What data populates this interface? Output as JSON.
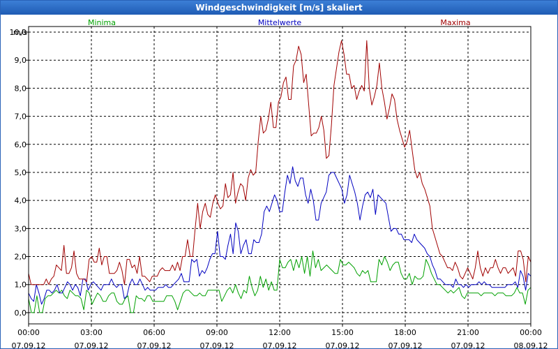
{
  "window": {
    "title": "Windgeschwindigkeit [m/s] skaliert"
  },
  "colors": {
    "min": "#00a000",
    "mean": "#0000c0",
    "max": "#a00000",
    "grid": "#000000"
  },
  "chart_data": {
    "type": "line",
    "ylabel": "m/s",
    "ylim": [
      -0.4,
      10.2
    ],
    "xlim": [
      0,
      24
    ],
    "legend_placement": "top",
    "grid": true,
    "yticks": [
      0,
      1,
      2,
      3,
      4,
      5,
      6,
      7,
      8,
      9,
      10
    ],
    "ytick_labels": [
      "0,0",
      "1,0",
      "2,0",
      "3,0",
      "4,0",
      "5,0",
      "6,0",
      "7,0",
      "8,0",
      "9,0",
      "10,0"
    ],
    "xticks": [
      {
        "time": "00:00",
        "date": "07.09.12"
      },
      {
        "time": "03:00",
        "date": "07.09.12"
      },
      {
        "time": "06:00",
        "date": "07.09.12"
      },
      {
        "time": "09:00",
        "date": "07.09.12"
      },
      {
        "time": "12:00",
        "date": "07.09.12"
      },
      {
        "time": "15:00",
        "date": "07.09.12"
      },
      {
        "time": "18:00",
        "date": "07.09.12"
      },
      {
        "time": "21:00",
        "date": "07.09.12"
      },
      {
        "time": "00:00",
        "date": "08.09.12"
      }
    ],
    "x_hours_step": 0.1667,
    "series": [
      {
        "name": "Minima",
        "values": [
          0.5,
          0.0,
          0.0,
          0.6,
          0.0,
          0.0,
          0.5,
          0.6,
          0.6,
          0.7,
          0.8,
          0.7,
          0.8,
          0.6,
          0.5,
          0.8,
          0.7,
          0.6,
          0.6,
          0.5,
          0.1,
          0.8,
          0.7,
          0.3,
          0.5,
          0.7,
          0.6,
          0.4,
          0.4,
          0.6,
          0.7,
          0.7,
          0.4,
          0.3,
          0.3,
          0.5,
          0.6,
          0.0,
          0.0,
          0.6,
          0.5,
          0.5,
          0.4,
          0.6,
          0.6,
          0.4,
          0.4,
          0.4,
          0.4,
          0.4,
          0.6,
          0.6,
          0.6,
          0.4,
          0.1,
          0.4,
          0.7,
          0.8,
          0.8,
          0.7,
          0.6,
          0.6,
          0.7,
          0.6,
          0.6,
          0.8,
          0.8,
          0.8,
          0.8,
          0.8,
          0.4,
          0.6,
          0.8,
          0.9,
          0.7,
          1.0,
          0.7,
          0.5,
          0.8,
          0.7,
          1.3,
          0.9,
          0.6,
          0.8,
          1.3,
          0.9,
          1.2,
          0.8,
          1.1,
          0.8,
          0.8,
          1.9,
          1.6,
          1.6,
          1.8,
          1.9,
          1.5,
          1.9,
          1.6,
          2.0,
          1.4,
          2.0,
          1.3,
          2.2,
          1.6,
          1.9,
          1.5,
          1.6,
          1.7,
          1.6,
          1.5,
          1.4,
          1.4,
          1.9,
          1.7,
          1.7,
          1.8,
          1.7,
          1.6,
          1.4,
          1.3,
          1.5,
          1.4,
          1.5,
          1.1,
          1.1,
          1.1,
          1.9,
          1.7,
          2.0,
          1.8,
          1.5,
          1.7,
          1.8,
          1.8,
          1.4,
          1.2,
          1.2,
          1.4,
          1.0,
          1.3,
          1.2,
          1.2,
          1.3,
          1.9,
          1.7,
          1.4,
          1.2,
          1.0,
          1.0,
          0.9,
          0.8,
          0.7,
          0.8,
          0.7,
          0.8,
          0.9,
          0.6,
          0.5,
          0.7,
          0.7,
          0.7,
          0.7,
          0.7,
          0.6,
          0.7,
          0.7,
          0.7,
          0.7,
          0.6,
          0.7,
          0.7,
          0.7,
          0.6,
          0.6,
          0.6,
          0.7,
          0.9,
          0.7,
          0.7,
          0.3,
          0.8,
          0.9
        ]
      },
      {
        "name": "Mittelwerte",
        "values": [
          0.7,
          0.5,
          0.4,
          1.0,
          0.7,
          0.3,
          0.5,
          0.8,
          0.8,
          0.7,
          0.8,
          1.0,
          0.7,
          0.7,
          0.9,
          1.1,
          1.0,
          0.8,
          1.0,
          0.9,
          0.6,
          1.2,
          1.2,
          0.8,
          1.0,
          1.1,
          1.0,
          0.9,
          0.8,
          1.0,
          1.0,
          1.0,
          1.2,
          1.0,
          0.9,
          1.0,
          1.0,
          0.5,
          0.6,
          1.0,
          1.2,
          1.0,
          1.0,
          1.2,
          1.0,
          0.8,
          0.9,
          0.8,
          0.8,
          0.8,
          0.9,
          0.9,
          0.9,
          1.0,
          0.9,
          0.9,
          1.0,
          1.1,
          1.2,
          1.4,
          1.1,
          1.1,
          1.1,
          1.9,
          1.8,
          1.9,
          1.3,
          1.5,
          1.4,
          1.6,
          1.9,
          2.1,
          2.1,
          2.9,
          2.0,
          2.0,
          1.9,
          2.4,
          2.8,
          2.1,
          3.2,
          2.9,
          2.1,
          2.4,
          2.6,
          2.1,
          2.1,
          2.6,
          2.5,
          2.5,
          2.8,
          3.6,
          3.8,
          3.6,
          3.9,
          4.2,
          4.0,
          3.6,
          3.6,
          4.3,
          4.9,
          4.6,
          5.2,
          4.7,
          4.5,
          4.8,
          4.8,
          4.2,
          3.9,
          4.4,
          4.0,
          3.3,
          3.3,
          3.9,
          4.1,
          4.3,
          4.9,
          5.0,
          5.0,
          4.8,
          4.6,
          4.4,
          3.9,
          4.2,
          4.9,
          4.6,
          4.3,
          3.9,
          3.3,
          3.8,
          4.2,
          4.3,
          4.1,
          4.4,
          3.5,
          4.2,
          4.1,
          4.0,
          3.9,
          3.4,
          2.9,
          3.0,
          3.0,
          2.8,
          2.8,
          2.6,
          2.6,
          2.6,
          2.5,
          2.8,
          2.6,
          2.5,
          2.4,
          2.3,
          2.1,
          2.0,
          1.7,
          1.5,
          1.2,
          1.2,
          1.1,
          1.0,
          1.0,
          1.0,
          0.9,
          1.2,
          1.0,
          1.0,
          0.9,
          1.0,
          0.9,
          1.0,
          1.0,
          1.0,
          1.1,
          1.0,
          1.1,
          1.0,
          1.0,
          0.9,
          0.9,
          0.9,
          0.9,
          0.9,
          0.9,
          1.0,
          1.0,
          1.0,
          1.1,
          0.9,
          1.5,
          1.3,
          0.8,
          1.4,
          1.3
        ]
      },
      {
        "name": "Maxima",
        "values": [
          1.4,
          1.0,
          1.0,
          1.0,
          1.0,
          1.0,
          1.0,
          1.2,
          1.0,
          1.2,
          1.3,
          1.7,
          1.6,
          1.5,
          2.4,
          1.4,
          1.4,
          1.6,
          2.2,
          1.4,
          1.2,
          1.2,
          1.2,
          1.1,
          1.9,
          2.0,
          1.8,
          1.8,
          2.3,
          1.7,
          2.0,
          2.0,
          1.4,
          1.4,
          1.4,
          1.5,
          1.8,
          1.5,
          1.0,
          1.9,
          1.9,
          1.6,
          1.7,
          1.4,
          2.0,
          1.3,
          1.3,
          1.2,
          1.1,
          1.3,
          1.3,
          1.3,
          1.5,
          1.6,
          1.5,
          1.5,
          1.5,
          1.7,
          1.5,
          1.8,
          1.5,
          2.0,
          2.0,
          2.6,
          2.0,
          2.0,
          3.0,
          3.9,
          3.0,
          3.6,
          3.9,
          3.5,
          3.4,
          3.9,
          4.2,
          3.9,
          3.7,
          3.8,
          4.6,
          4.1,
          4.2,
          5.0,
          3.9,
          4.3,
          4.6,
          4.5,
          4.0,
          4.8,
          5.1,
          4.9,
          5.0,
          6.1,
          7.0,
          6.4,
          6.5,
          6.9,
          7.5,
          6.6,
          6.6,
          7.5,
          7.7,
          8.2,
          8.4,
          7.6,
          7.6,
          8.8,
          9.0,
          9.5,
          9.2,
          8.2,
          8.5,
          7.4,
          6.3,
          6.4,
          6.4,
          6.6,
          7.0,
          6.5,
          5.5,
          5.6,
          6.7,
          8.1,
          8.7,
          9.3,
          9.7,
          9.2,
          8.5,
          8.5,
          8.0,
          8.1,
          7.6,
          7.9,
          8.1,
          7.9,
          9.7,
          8.0,
          7.4,
          7.7,
          8.1,
          8.9,
          8.0,
          7.5,
          6.9,
          7.3,
          7.8,
          7.6,
          6.9,
          6.5,
          6.2,
          5.9,
          6.1,
          6.5,
          5.8,
          5.1,
          4.8,
          5.0,
          4.6,
          4.4,
          4.1,
          3.8,
          3.0,
          2.7,
          2.4,
          2.1,
          2.0,
          1.8,
          1.6,
          1.6,
          1.5,
          1.8,
          1.6,
          1.3,
          1.2,
          1.4,
          1.6,
          1.4,
          1.2,
          1.6,
          2.2,
          1.6,
          1.3,
          1.6,
          1.4,
          1.6,
          1.6,
          1.9,
          1.6,
          1.4,
          1.6,
          1.6,
          1.4,
          1.5,
          1.6,
          1.3,
          2.2,
          2.2,
          1.9,
          1.1,
          2.0,
          1.8
        ]
      }
    ]
  }
}
